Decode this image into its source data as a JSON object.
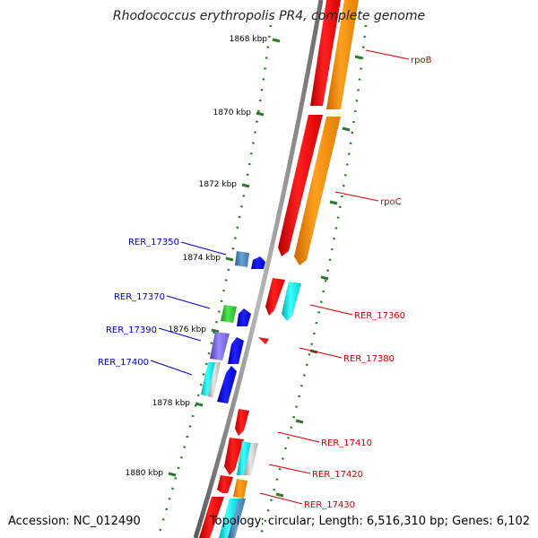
{
  "title": "Rhodococcus erythropolis PR4, complete genome",
  "footer": {
    "accession": "Accession: NC_012490",
    "summary": "Topology: circular; Length: 6,516,310 bp; Genes: 6,102"
  },
  "colors": {
    "backbone": "#8c8c8c",
    "tick": "#2a7a2a",
    "left_label": "#0000cc",
    "right_label": "#cc0000"
  },
  "ticks": [
    {
      "label": "1868 kbp"
    },
    {
      "label": "1870 kbp"
    },
    {
      "label": "1872 kbp"
    },
    {
      "label": "1874 kbp"
    },
    {
      "label": "1876 kbp"
    },
    {
      "label": "1878 kbp"
    },
    {
      "label": "1880 kbp"
    }
  ],
  "genes": [
    {
      "name": "rpoB",
      "side": "right",
      "color": "#ff0000"
    },
    {
      "name": "rpoC",
      "side": "right",
      "color": "#ff0000"
    },
    {
      "name": "RER_17350",
      "side": "left",
      "color": "#4682b4"
    },
    {
      "name": "RER_17360",
      "side": "right",
      "color": "#ff0000"
    },
    {
      "name": "RER_17370",
      "side": "left",
      "color": "#32cd32"
    },
    {
      "name": "RER_17380",
      "side": "right",
      "color": "#ff0000"
    },
    {
      "name": "RER_17390",
      "side": "left",
      "color": "#7b68ee"
    },
    {
      "name": "RER_17400",
      "side": "left",
      "color": "#00ffff"
    },
    {
      "name": "RER_17410",
      "side": "right",
      "color": "#ff0000"
    },
    {
      "name": "RER_17420",
      "side": "right",
      "color": "#ff0000"
    },
    {
      "name": "RER_17430",
      "side": "right",
      "color": "#ff0000"
    }
  ]
}
